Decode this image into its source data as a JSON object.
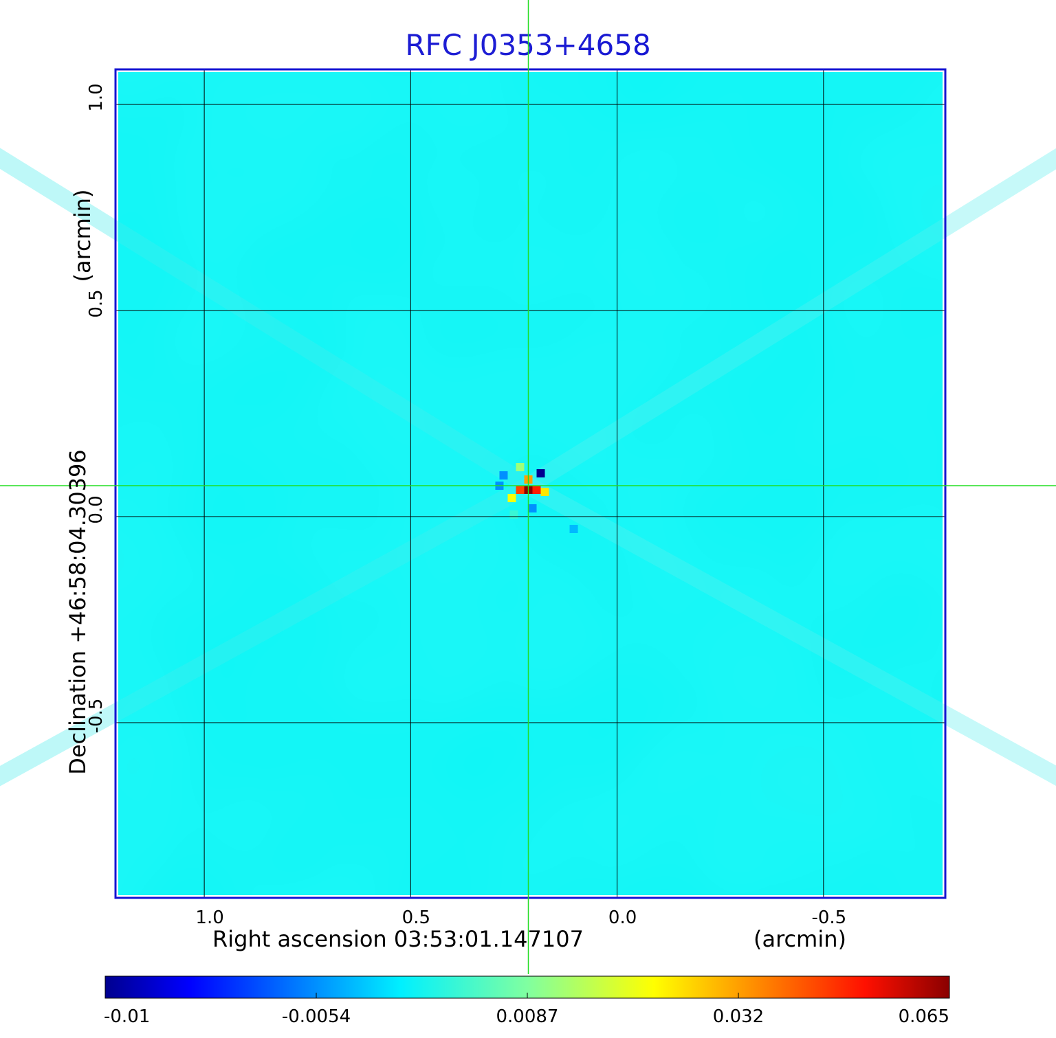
{
  "chart_data": {
    "type": "heatmap",
    "title": "RFC J0353+4658",
    "xlabel": "Right ascension  03:53:01.147107",
    "xunit": "(arcmin)",
    "ylabel": "Declination  +46:58:04.30396",
    "yunit": "(arcmin)",
    "x_ticks": [
      1.0,
      0.5,
      0.0,
      -0.5
    ],
    "x_tick_labels": [
      "1.0",
      "0.5",
      "0.0",
      "-0.5"
    ],
    "y_ticks": [
      1.0,
      0.5,
      0.0,
      -0.5
    ],
    "y_tick_labels": [
      "1.0",
      "0.5",
      "0.0",
      "-0.5"
    ],
    "xlim": [
      1.215,
      -0.795
    ],
    "ylim": [
      -0.925,
      1.085
    ],
    "x_reversed": true,
    "grid": true,
    "crosshair": {
      "x": 0.215,
      "y": 0.075
    },
    "colorbar": {
      "ticks": [
        "-0.01",
        "-0.0054",
        "0.0087",
        "0.032",
        "0.065"
      ],
      "colormap": "jet",
      "placement": "bottom"
    },
    "background_value": 0.0,
    "sources": [
      {
        "x": 0.215,
        "y": 0.065,
        "value": 0.065
      },
      {
        "x": 0.195,
        "y": 0.065,
        "value": 0.05
      },
      {
        "x": 0.235,
        "y": 0.065,
        "value": 0.045
      },
      {
        "x": 0.215,
        "y": 0.09,
        "value": 0.032
      },
      {
        "x": 0.175,
        "y": 0.06,
        "value": 0.025
      },
      {
        "x": 0.255,
        "y": 0.045,
        "value": 0.022
      },
      {
        "x": 0.235,
        "y": 0.12,
        "value": 0.012
      },
      {
        "x": 0.275,
        "y": 0.1,
        "value": -0.0054
      },
      {
        "x": 0.185,
        "y": 0.105,
        "value": -0.01
      },
      {
        "x": 0.205,
        "y": 0.02,
        "value": -0.0054
      },
      {
        "x": 0.285,
        "y": 0.075,
        "value": -0.0054
      },
      {
        "x": 0.105,
        "y": -0.03,
        "value": -0.003
      },
      {
        "x": 0.25,
        "y": 0.005,
        "value": 0.004
      }
    ]
  },
  "colors": {
    "title": "#1414d2",
    "frame": "#1414d2",
    "crosshair": "#22dd22",
    "grid": "#000000",
    "background": "#0ef6f6"
  }
}
